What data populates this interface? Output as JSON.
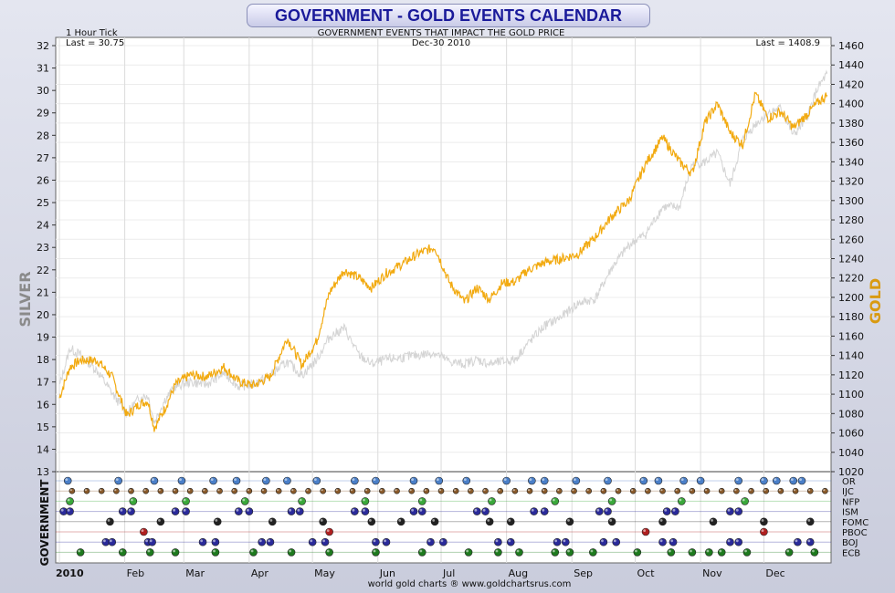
{
  "header": {
    "title": "GOVERNMENT - GOLD EVENTS CALENDAR"
  },
  "colors": {
    "gold": "#f2aa10",
    "silver": "#d4d4d4",
    "silver_axis_label": "#8a8a8a",
    "gold_axis_label": "#d99a10"
  },
  "chart_data": {
    "type": "line",
    "title": "GOVERNMENT EVENTS THAT IMPACT THE GOLD PRICE",
    "interval_label": "1 Hour Tick",
    "date_label": "Dec-30  2010",
    "left_last_label": "Last = 30.75",
    "right_last_label": "Last = 1408.9",
    "ylabel_left": "SILVER",
    "ylabel_right": "GOLD",
    "ylim_left": [
      13,
      32
    ],
    "ylim_right": [
      1020,
      1460
    ],
    "yticks_left": [
      13,
      14,
      15,
      16,
      17,
      18,
      19,
      20,
      21,
      22,
      23,
      24,
      25,
      26,
      27,
      28,
      29,
      30,
      31,
      32
    ],
    "yticks_right": [
      1020,
      1040,
      1060,
      1080,
      1100,
      1120,
      1140,
      1160,
      1180,
      1200,
      1220,
      1240,
      1260,
      1280,
      1300,
      1320,
      1340,
      1360,
      1380,
      1400,
      1420,
      1440,
      1460
    ],
    "x_tick_labels": [
      "2010",
      "Feb",
      "Mar",
      "Apr",
      "May",
      "Jun",
      "Jul",
      "Aug",
      "Sep",
      "Oct",
      "Nov",
      "Dec"
    ],
    "source_label": "world gold charts ® www.goldchartsrus.com",
    "grid": true,
    "series": [
      {
        "name": "GOLD",
        "axis": "right",
        "color": "#f2aa10",
        "x": [
          0,
          5,
          10,
          18,
          25,
          32,
          38,
          42,
          45,
          50,
          55,
          62,
          70,
          78,
          85,
          92,
          100,
          108,
          115,
          122,
          128,
          135,
          142,
          148,
          155,
          163,
          170,
          178,
          185,
          192,
          198,
          204,
          210,
          216,
          222,
          230,
          238,
          246,
          254,
          262,
          270,
          278,
          286,
          294,
          300,
          306,
          312,
          318,
          324,
          330,
          336,
          342,
          348,
          354,
          359,
          364
        ],
        "y": [
          1096,
          1128,
          1135,
          1135,
          1118,
          1078,
          1090,
          1093,
          1065,
          1085,
          1110,
          1120,
          1118,
          1128,
          1113,
          1109,
          1118,
          1158,
          1130,
          1155,
          1205,
          1228,
          1220,
          1210,
          1225,
          1235,
          1245,
          1252,
          1215,
          1195,
          1210,
          1198,
          1215,
          1216,
          1228,
          1236,
          1240,
          1245,
          1262,
          1284,
          1300,
          1338,
          1365,
          1340,
          1328,
          1380,
          1400,
          1370,
          1358,
          1410,
          1385,
          1392,
          1375,
          1388,
          1400,
          1408.9
        ]
      },
      {
        "name": "SILVER",
        "axis": "left",
        "color": "#d4d4d4",
        "x": [
          0,
          5,
          10,
          18,
          25,
          32,
          38,
          42,
          45,
          50,
          55,
          62,
          70,
          78,
          85,
          92,
          100,
          108,
          115,
          122,
          128,
          135,
          142,
          148,
          155,
          163,
          170,
          178,
          185,
          192,
          198,
          204,
          210,
          216,
          222,
          230,
          238,
          246,
          254,
          262,
          270,
          278,
          286,
          294,
          300,
          306,
          312,
          318,
          324,
          330,
          336,
          342,
          348,
          354,
          359,
          364
        ],
        "y": [
          16.8,
          18.5,
          18.2,
          17.5,
          16.5,
          15.6,
          16.3,
          16.4,
          15.2,
          16.2,
          16.8,
          17.0,
          16.9,
          17.4,
          16.8,
          16.9,
          17.3,
          17.9,
          17.3,
          18.0,
          19.0,
          19.4,
          18.2,
          17.8,
          18.0,
          18.1,
          18.2,
          18.3,
          17.9,
          17.8,
          18.0,
          17.8,
          17.9,
          18.0,
          18.7,
          19.5,
          19.9,
          20.5,
          20.7,
          22.1,
          23.1,
          23.6,
          24.8,
          24.8,
          26.7,
          26.8,
          27.2,
          25.8,
          27.8,
          28.5,
          29.0,
          29.2,
          28.0,
          28.7,
          30.0,
          30.75
        ]
      }
    ],
    "events_panel": {
      "ylabel": "GOVERNMENT",
      "rows": [
        {
          "label": "OR",
          "color": "#4a7fc8",
          "x": [
            4,
            28,
            45,
            58,
            73,
            84,
            98,
            108,
            122,
            140,
            150,
            168,
            180,
            193,
            212,
            224,
            230,
            245,
            260,
            277,
            284,
            296,
            304,
            322,
            334,
            340,
            348,
            352
          ]
        },
        {
          "label": "IJC",
          "color": "#8a5a2a",
          "x": [
            6,
            13,
            20,
            27,
            34,
            41,
            48,
            55,
            62,
            69,
            76,
            83,
            90,
            97,
            104,
            111,
            118,
            125,
            132,
            139,
            146,
            153,
            160,
            167,
            174,
            181,
            188,
            195,
            202,
            209,
            216,
            223,
            230,
            237,
            244,
            251,
            258,
            265,
            272,
            279,
            286,
            293,
            300,
            307,
            314,
            321,
            328,
            335,
            342,
            349,
            356,
            363
          ]
        },
        {
          "label": "NFP",
          "color": "#3aa83a",
          "x": [
            5,
            35,
            60,
            88,
            115,
            145,
            172,
            205,
            235,
            262,
            295,
            325
          ]
        },
        {
          "label": "ISM",
          "color": "#2a2a9a",
          "x": [
            2,
            5,
            30,
            34,
            55,
            60,
            85,
            90,
            110,
            114,
            140,
            145,
            168,
            172,
            198,
            202,
            225,
            230,
            256,
            260,
            288,
            292,
            318,
            322
          ]
        },
        {
          "label": "FOMC",
          "color": "#222222",
          "x": [
            24,
            48,
            75,
            101,
            125,
            148,
            162,
            178,
            204,
            214,
            242,
            262,
            286,
            310,
            334,
            356
          ]
        },
        {
          "label": "PBOC",
          "color": "#b02020",
          "x": [
            40,
            128,
            278,
            334
          ]
        },
        {
          "label": "BOJ",
          "color": "#2a2a9a",
          "x": [
            22,
            25,
            42,
            44,
            68,
            74,
            96,
            100,
            120,
            126,
            150,
            155,
            176,
            182,
            208,
            214,
            236,
            240,
            258,
            264,
            286,
            291,
            318,
            322,
            350,
            356
          ]
        },
        {
          "label": "ECB",
          "color": "#1e7a1e",
          "x": [
            10,
            30,
            43,
            55,
            74,
            92,
            110,
            128,
            150,
            172,
            194,
            208,
            218,
            235,
            242,
            253,
            274,
            290,
            300,
            308,
            314,
            326,
            346,
            358
          ]
        }
      ]
    }
  }
}
